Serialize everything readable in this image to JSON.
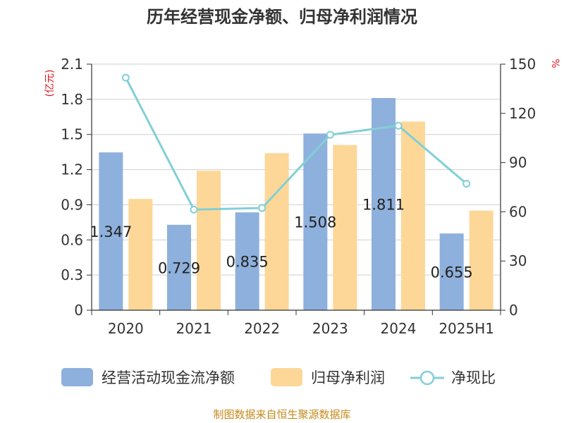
{
  "chart_data": {
    "type": "bar",
    "title": "历年经营现金净额、归母净利润情况",
    "categories": [
      "2020",
      "2021",
      "2022",
      "2023",
      "2024",
      "2025H1"
    ],
    "series": [
      {
        "name": "经营活动现金流净额",
        "kind": "bar",
        "axis": "left",
        "color": "#8eb0dc",
        "values": [
          1.347,
          0.729,
          0.835,
          1.508,
          1.811,
          0.655
        ],
        "labels": [
          "1.347",
          "0.729",
          "0.835",
          "1.508",
          "1.811",
          "0.655"
        ]
      },
      {
        "name": "归母净利润",
        "kind": "bar",
        "axis": "left",
        "color": "#fdd797",
        "values": [
          0.95,
          1.19,
          1.34,
          1.41,
          1.61,
          0.85
        ]
      },
      {
        "name": "净现比",
        "kind": "line",
        "axis": "right",
        "color": "#82cfd6",
        "values": [
          141.8,
          61.3,
          62.3,
          106.9,
          112.5,
          77.1
        ]
      }
    ],
    "y_left": {
      "unit": "(亿元)",
      "ylim": [
        0,
        2.1
      ],
      "ticks": [
        "0",
        "0.3",
        "0.6",
        "0.9",
        "1.2",
        "1.5",
        "1.8",
        "2.1"
      ]
    },
    "y_right": {
      "unit": "%",
      "ylim": [
        0,
        150
      ],
      "ticks": [
        "0",
        "30",
        "60",
        "90",
        "120",
        "150"
      ]
    },
    "grid": true,
    "legend_position": "bottom",
    "source": "制图数据来自恒生聚源数据库"
  }
}
